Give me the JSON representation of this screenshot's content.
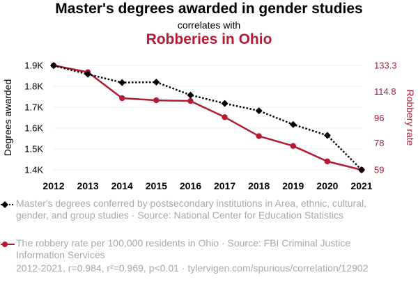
{
  "header": {
    "title": "Master's degrees awarded in gender studies",
    "subtitle": "correlates with",
    "title2": "Robberies in Ohio"
  },
  "colors": {
    "series1": "#000000",
    "series2": "#b31b32",
    "muted": "#a8a8a8"
  },
  "chart_data": {
    "type": "line",
    "x": [
      2012,
      2013,
      2014,
      2015,
      2016,
      2017,
      2018,
      2019,
      2020,
      2021
    ],
    "series": [
      {
        "name": "Degrees awarded",
        "axis": "left",
        "style": "dotted, diamond markers",
        "values": [
          1899,
          1858,
          1818,
          1820,
          1758,
          1718,
          1683,
          1617,
          1565,
          1400
        ]
      },
      {
        "name": "Robbery rate",
        "axis": "right",
        "style": "solid, circle markers",
        "values": [
          133.3,
          128.5,
          110.0,
          108.5,
          108.0,
          96.5,
          83.0,
          76.0,
          65.0,
          59.0
        ]
      }
    ],
    "ylabel_left": "Degrees awarded",
    "ylabel_right": "Robbery rate",
    "yticks_left": [
      "1.4K",
      "1.5K",
      "1.6K",
      "1.7K",
      "1.8K",
      "1.9K"
    ],
    "yticks_left_values": [
      1400,
      1500,
      1600,
      1700,
      1800,
      1900
    ],
    "yticks_right": [
      "59",
      "78",
      "96",
      "114.8",
      "133.3"
    ],
    "yticks_right_values": [
      59,
      78,
      96,
      114.8,
      133.3
    ],
    "ylim_left": [
      1400,
      1900
    ],
    "ylim_right": [
      59,
      133.3
    ],
    "grid": "horizontal"
  },
  "legend": {
    "items": [
      {
        "text": "Master's degrees conferred by postsecondary institutions in Area, ethnic, cultural, gender, and group studies · Source: National Center for Education Statistics"
      },
      {
        "text": "The robbery rate per 100,000 residents in Ohio · Source: FBI Criminal Justice Information Services"
      }
    ]
  },
  "footer": {
    "text": "2012-2021, r=0.984, r²=0.969, p<0.01 · tylervigen.com/spurious/correlation/12902"
  }
}
